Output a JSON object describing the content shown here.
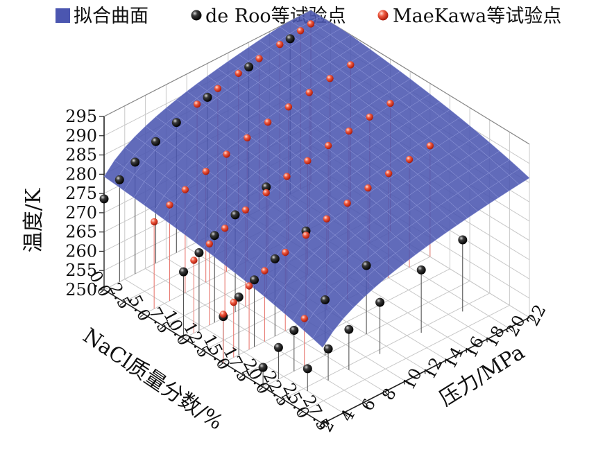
{
  "chart_data": {
    "type": "surface3d",
    "title": "",
    "legend": {
      "placement": "top",
      "entries": [
        {
          "name": "拟合曲面",
          "marker": "square",
          "color": "#4b56b0"
        },
        {
          "name": "de Roo等试验点",
          "marker": "sphere",
          "color": "#222222"
        },
        {
          "name": "MaeKawa等试验点",
          "marker": "sphere",
          "color": "#e8392b"
        }
      ]
    },
    "x_axis": {
      "label": "NaCl质量分数/%",
      "range": [
        0,
        27.5
      ],
      "ticks": [
        "0.0",
        "2.5",
        "5.0",
        "7.5",
        "10.0",
        "12.5",
        "15.0",
        "17.5",
        "20.0",
        "22.5",
        "25.0",
        "27.5"
      ]
    },
    "y_axis": {
      "label": "压力/MPa",
      "range": [
        2,
        22
      ],
      "ticks": [
        "2",
        "4",
        "6",
        "8",
        "10",
        "12",
        "14",
        "16",
        "18",
        "20",
        "22"
      ]
    },
    "z_axis": {
      "label": "温度/K",
      "range": [
        250,
        295
      ],
      "ticks": [
        "250",
        "255",
        "260",
        "265",
        "270",
        "275",
        "280",
        "285",
        "290",
        "295"
      ]
    },
    "grid": true,
    "colors": {
      "surface": "#4b56b0",
      "surface_line": "#8e97d8",
      "de_roo": "#1a1a1a",
      "maekawa": "#e8392b",
      "grid": "#c8c8c8"
    },
    "series": [
      {
        "name": "de Roo等试验点",
        "points": [
          {
            "x": 0,
            "y": 2,
            "z": 273.6
          },
          {
            "x": 0,
            "y": 3.5,
            "z": 276.5
          },
          {
            "x": 0,
            "y": 5,
            "z": 279.0
          },
          {
            "x": 0,
            "y": 7,
            "z": 281.6
          },
          {
            "x": 0,
            "y": 9,
            "z": 283.8
          },
          {
            "x": 0,
            "y": 12,
            "z": 286.2
          },
          {
            "x": 0,
            "y": 16,
            "z": 288.6
          },
          {
            "x": 0,
            "y": 20,
            "z": 290.4
          },
          {
            "x": 10,
            "y": 2,
            "z": 267.3
          },
          {
            "x": 10,
            "y": 3.5,
            "z": 270.2
          },
          {
            "x": 10,
            "y": 5,
            "z": 272.6
          },
          {
            "x": 10,
            "y": 7,
            "z": 275.2
          },
          {
            "x": 10,
            "y": 10,
            "z": 278.3
          },
          {
            "x": 15,
            "y": 2,
            "z": 262.0
          },
          {
            "x": 15,
            "y": 3.5,
            "z": 265.0
          },
          {
            "x": 15,
            "y": 5,
            "z": 267.4
          },
          {
            "x": 15,
            "y": 7,
            "z": 270.1
          },
          {
            "x": 15,
            "y": 10,
            "z": 273.2
          },
          {
            "x": 20,
            "y": 2,
            "z": 255.1
          },
          {
            "x": 20,
            "y": 3.5,
            "z": 258.2
          },
          {
            "x": 20,
            "y": 5,
            "z": 260.6
          },
          {
            "x": 20,
            "y": 8,
            "z": 264.4
          },
          {
            "x": 20,
            "y": 12,
            "z": 267.8
          },
          {
            "x": 23,
            "y": 4,
            "z": 255.8
          },
          {
            "x": 23,
            "y": 6,
            "z": 258.2
          },
          {
            "x": 23,
            "y": 8,
            "z": 260.5
          },
          {
            "x": 23,
            "y": 11,
            "z": 263.4
          },
          {
            "x": 23,
            "y": 15,
            "z": 266.3
          },
          {
            "x": 23,
            "y": 19,
            "z": 268.6
          }
        ]
      },
      {
        "name": "MaeKawa等试验点",
        "points": [
          {
            "x": 0,
            "y": 11,
            "z": 285.8
          },
          {
            "x": 0,
            "y": 13,
            "z": 287.1
          },
          {
            "x": 0,
            "y": 15,
            "z": 288.3
          },
          {
            "x": 0,
            "y": 17,
            "z": 289.4
          },
          {
            "x": 0,
            "y": 19,
            "z": 290.3
          },
          {
            "x": 0,
            "y": 21,
            "z": 291.1
          },
          {
            "x": 0,
            "y": 22,
            "z": 291.5
          },
          {
            "x": 5,
            "y": 3,
            "z": 272.6
          },
          {
            "x": 5,
            "y": 4.5,
            "z": 274.9
          },
          {
            "x": 5,
            "y": 6,
            "z": 276.8
          },
          {
            "x": 5,
            "y": 8,
            "z": 278.8
          },
          {
            "x": 5,
            "y": 10,
            "z": 280.5
          },
          {
            "x": 5,
            "y": 12,
            "z": 282.0
          },
          {
            "x": 5,
            "y": 14,
            "z": 283.3
          },
          {
            "x": 5,
            "y": 16,
            "z": 284.5
          },
          {
            "x": 5,
            "y": 18,
            "z": 285.5
          },
          {
            "x": 5,
            "y": 20,
            "z": 286.4
          },
          {
            "x": 5,
            "y": 22,
            "z": 287.2
          },
          {
            "x": 10,
            "y": 3,
            "z": 268.9
          },
          {
            "x": 10,
            "y": 4.5,
            "z": 271.1
          },
          {
            "x": 10,
            "y": 6,
            "z": 273.1
          },
          {
            "x": 10,
            "y": 8,
            "z": 275.1
          },
          {
            "x": 10,
            "y": 10,
            "z": 276.8
          },
          {
            "x": 10,
            "y": 12,
            "z": 278.3
          },
          {
            "x": 10,
            "y": 14,
            "z": 279.6
          },
          {
            "x": 10,
            "y": 16,
            "z": 280.8
          },
          {
            "x": 10,
            "y": 18,
            "z": 281.8
          },
          {
            "x": 10,
            "y": 20,
            "z": 282.7
          },
          {
            "x": 10,
            "y": 22,
            "z": 283.5
          },
          {
            "x": 15,
            "y": 2,
            "z": 262.6
          },
          {
            "x": 15,
            "y": 3,
            "z": 264.3
          },
          {
            "x": 15,
            "y": 4.5,
            "z": 266.5
          },
          {
            "x": 15,
            "y": 6,
            "z": 268.4
          },
          {
            "x": 15,
            "y": 8,
            "z": 270.4
          },
          {
            "x": 15,
            "y": 10,
            "z": 272.1
          },
          {
            "x": 15,
            "y": 12,
            "z": 273.6
          },
          {
            "x": 15,
            "y": 14,
            "z": 274.9
          },
          {
            "x": 15,
            "y": 16,
            "z": 276.1
          },
          {
            "x": 15,
            "y": 18,
            "z": 277.1
          },
          {
            "x": 15,
            "y": 20,
            "z": 278.0
          },
          {
            "x": 15,
            "y": 22,
            "z": 278.8
          },
          {
            "x": 20,
            "y": 6,
            "z": 262.3
          }
        ]
      }
    ]
  }
}
